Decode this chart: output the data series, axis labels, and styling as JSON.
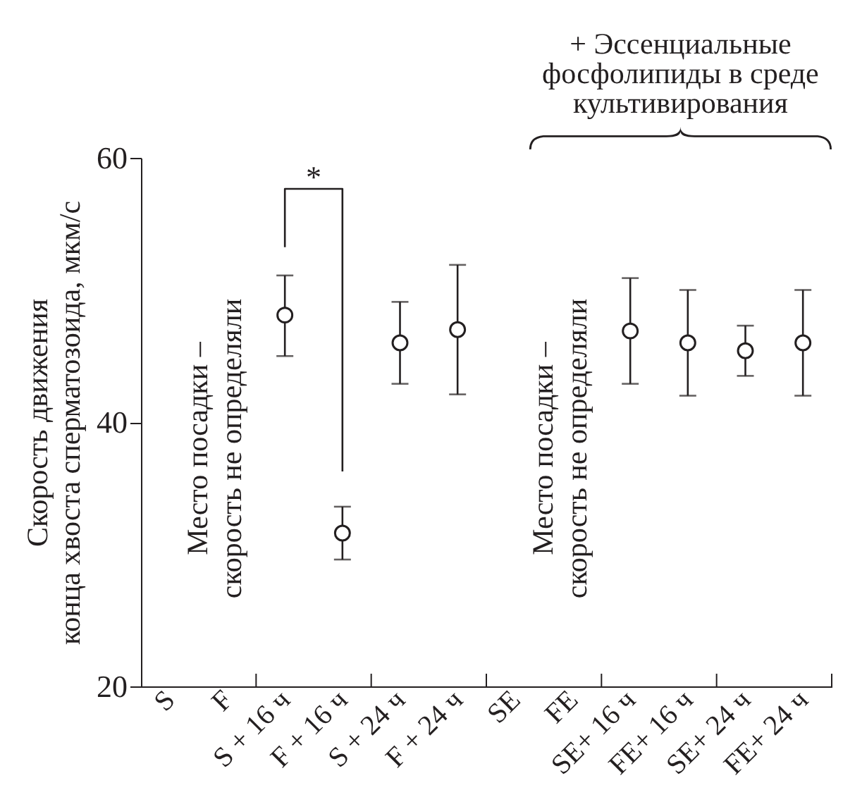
{
  "chart_data": {
    "type": "scatter",
    "categories": [
      "S",
      "F",
      "S + 16 ч",
      "F + 16 ч",
      "S + 24 ч",
      "F + 24 ч",
      "SE",
      "FE",
      "SE+ 16 ч",
      "FE+ 16 ч",
      "SE+ 24 ч",
      "FE+ 24 ч"
    ],
    "values": [
      null,
      null,
      48.1,
      31.6,
      46.0,
      47.0,
      null,
      null,
      46.9,
      46.0,
      45.4,
      46.0
    ],
    "errors": [
      null,
      null,
      [
        45.0,
        51.1
      ],
      [
        29.6,
        33.6
      ],
      [
        42.9,
        49.1
      ],
      [
        42.1,
        51.9
      ],
      null,
      null,
      [
        42.9,
        50.9
      ],
      [
        42.0,
        50.0
      ],
      [
        43.5,
        47.3
      ],
      [
        42.0,
        50.0
      ]
    ],
    "color": "#231f20",
    "marker": "circle",
    "ylabel": "Скорость движения\nконца хвоста сперматозоида, мкм/с",
    "ylim": [
      20,
      60
    ],
    "yticks": [
      20,
      40,
      60
    ],
    "grid": false,
    "annotations": [
      "*",
      "Место посадки –\nскорость не определяли",
      "Место посадки –\nскорость не определяли",
      "+ Эссенциальные\nфосфолипиды в среде\nкультивирования"
    ]
  }
}
